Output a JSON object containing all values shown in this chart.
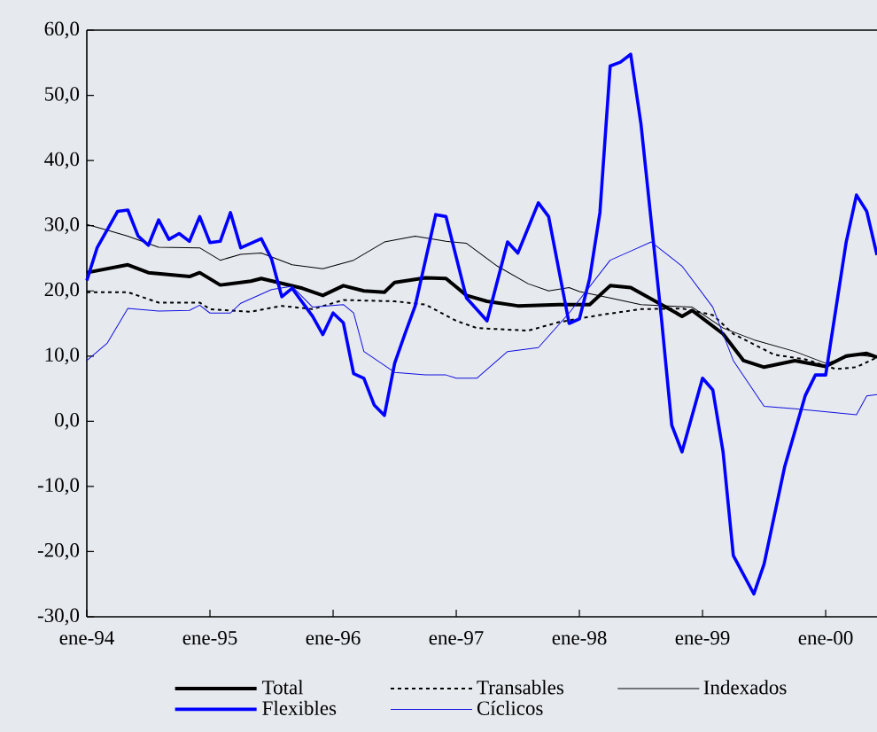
{
  "chart_data": {
    "type": "line",
    "xlim": [
      "1994-01",
      "2000-06"
    ],
    "xticks": [
      {
        "value": "1994-01",
        "label": "ene-94"
      },
      {
        "value": "1995-01",
        "label": "ene-95"
      },
      {
        "value": "1996-01",
        "label": "ene-96"
      },
      {
        "value": "1997-01",
        "label": "ene-97"
      },
      {
        "value": "1998-01",
        "label": "ene-98"
      },
      {
        "value": "1999-01",
        "label": "ene-99"
      },
      {
        "value": "2000-01",
        "label": "ene-00"
      }
    ],
    "ylim": [
      -30,
      60
    ],
    "yticks": [
      {
        "value": -30,
        "label": "-30,0"
      },
      {
        "value": -20,
        "label": "-20,0"
      },
      {
        "value": -10,
        "label": "-10,0"
      },
      {
        "value": 0,
        "label": "0,0"
      },
      {
        "value": 10,
        "label": "10,0"
      },
      {
        "value": 20,
        "label": "20,0"
      },
      {
        "value": 30,
        "label": "30,0"
      },
      {
        "value": 40,
        "label": "40,0"
      },
      {
        "value": 50,
        "label": "50,0"
      },
      {
        "value": 60,
        "label": "60,0"
      }
    ],
    "legend": "bottom",
    "marker": "none",
    "series": [
      {
        "name": "Total",
        "color": "#000000",
        "line_style": "solid",
        "x": [
          "1994-01",
          "1994-05",
          "1994-07",
          "1994-11",
          "1994-12",
          "1995-02",
          "1995-05",
          "1995-06",
          "1995-10",
          "1995-12",
          "1996-02",
          "1996-04",
          "1996-06",
          "1996-07",
          "1996-10",
          "1996-12",
          "1997-02",
          "1997-04",
          "1997-07",
          "1997-11",
          "1998-02",
          "1998-04",
          "1998-06",
          "1998-09",
          "1998-11",
          "1998-12",
          "1999-03",
          "1999-05",
          "1999-07",
          "1999-10",
          "2000-01",
          "2000-03",
          "2000-05",
          "2000-06"
        ],
        "values": [
          22.8,
          24.0,
          22.8,
          22.2,
          22.8,
          20.9,
          21.5,
          21.9,
          20.4,
          19.3,
          20.8,
          20.0,
          19.8,
          21.3,
          22.0,
          21.9,
          19.3,
          18.4,
          17.7,
          17.9,
          17.9,
          20.8,
          20.5,
          17.9,
          16.1,
          17.0,
          13.4,
          9.3,
          8.3,
          9.3,
          8.4,
          10.0,
          10.4,
          9.8
        ]
      },
      {
        "name": "Transables",
        "color": "#000000",
        "line_style": "dashed",
        "x": [
          "1994-01",
          "1994-05",
          "1994-08",
          "1994-12",
          "1995-01",
          "1995-05",
          "1995-08",
          "1995-11",
          "1996-02",
          "1996-07",
          "1996-10",
          "1997-01",
          "1997-03",
          "1997-08",
          "1997-11",
          "1998-03",
          "1998-07",
          "1998-11",
          "1999-02",
          "1999-04",
          "1999-08",
          "1999-11",
          "2000-02",
          "2000-04",
          "2000-06"
        ],
        "values": [
          19.8,
          19.8,
          18.2,
          18.2,
          17.2,
          16.8,
          17.7,
          17.2,
          18.6,
          18.4,
          17.9,
          15.4,
          14.3,
          13.9,
          15.2,
          16.3,
          17.2,
          17.3,
          16.3,
          13.4,
          10.2,
          9.5,
          8.0,
          8.3,
          9.8
        ]
      },
      {
        "name": "Indexados",
        "color": "#000000",
        "line_style": "solid",
        "x": [
          "1994-01",
          "1994-03",
          "1994-05",
          "1994-08",
          "1994-12",
          "1995-02",
          "1995-04",
          "1995-06",
          "1995-09",
          "1995-12",
          "1996-03",
          "1996-06",
          "1996-09",
          "1996-12",
          "1997-02",
          "1997-05",
          "1997-08",
          "1997-10",
          "1997-12",
          "1998-01",
          "1998-04",
          "1998-07",
          "1998-12",
          "1999-03",
          "1999-06",
          "1999-10",
          "2000-01",
          "2000-04",
          "2000-06"
        ],
        "values": [
          30.2,
          29.3,
          28.4,
          26.7,
          26.6,
          24.7,
          25.6,
          25.8,
          24.0,
          23.4,
          24.7,
          27.5,
          28.4,
          27.6,
          27.3,
          23.8,
          21.1,
          20.0,
          20.5,
          19.9,
          18.9,
          17.9,
          17.5,
          14.3,
          12.5,
          10.7,
          8.9,
          10.2,
          9.8
        ]
      },
      {
        "name": "Flexibles",
        "color": "#0000ff",
        "line_style": "solid",
        "x": [
          "1994-01",
          "1994-02",
          "1994-04",
          "1994-05",
          "1994-06",
          "1994-07",
          "1994-08",
          "1994-09",
          "1994-10",
          "1994-11",
          "1994-12",
          "1995-01",
          "1995-02",
          "1995-03",
          "1995-04",
          "1995-06",
          "1995-07",
          "1995-08",
          "1995-09",
          "1995-11",
          "1995-12",
          "1996-01",
          "1996-02",
          "1996-03",
          "1996-04",
          "1996-05",
          "1996-06",
          "1996-07",
          "1996-08",
          "1996-09",
          "1996-11",
          "1996-12",
          "1997-02",
          "1997-04",
          "1997-06",
          "1997-07",
          "1997-09",
          "1997-10",
          "1997-12",
          "1998-01",
          "1998-02",
          "1998-03",
          "1998-04",
          "1998-05",
          "1998-06",
          "1998-07",
          "1998-09",
          "1998-10",
          "1998-11",
          "1999-01",
          "1999-02",
          "1999-03",
          "1999-04",
          "1999-06",
          "1999-07",
          "1999-09",
          "1999-11",
          "1999-12",
          "2000-01",
          "2000-03",
          "2000-04",
          "2000-05",
          "2000-06"
        ],
        "values": [
          21.6,
          26.6,
          32.2,
          32.4,
          28.4,
          27.0,
          30.9,
          27.9,
          28.8,
          27.6,
          31.4,
          27.4,
          27.6,
          32.0,
          26.6,
          28.0,
          24.9,
          19.1,
          20.4,
          16.1,
          13.3,
          16.6,
          15.1,
          7.3,
          6.6,
          2.5,
          0.9,
          8.9,
          13.4,
          17.7,
          31.7,
          31.4,
          18.9,
          15.4,
          27.5,
          25.8,
          33.5,
          31.4,
          15.0,
          15.7,
          21.9,
          32.0,
          54.5,
          55.1,
          56.3,
          45.6,
          15.7,
          -0.6,
          -4.7,
          6.6,
          4.8,
          -4.7,
          -20.6,
          -26.5,
          -21.9,
          -7.0,
          3.9,
          7.1,
          7.1,
          27.5,
          34.7,
          32.2,
          25.5
        ]
      },
      {
        "name": "Cíclicos",
        "color": "#1010e0",
        "line_style": "solid",
        "x": [
          "1994-01",
          "1994-03",
          "1994-05",
          "1994-08",
          "1994-11",
          "1994-12",
          "1995-01",
          "1995-03",
          "1995-04",
          "1995-07",
          "1995-09",
          "1995-11",
          "1996-02",
          "1996-03",
          "1996-04",
          "1996-07",
          "1996-10",
          "1996-12",
          "1997-01",
          "1997-03",
          "1997-06",
          "1997-09",
          "1997-12",
          "1998-04",
          "1998-06",
          "1998-08",
          "1998-11",
          "1999-02",
          "1999-04",
          "1999-07",
          "1999-10",
          "2000-04",
          "2000-05",
          "2000-06"
        ],
        "values": [
          9.3,
          12.0,
          17.3,
          16.9,
          17.0,
          17.8,
          16.6,
          16.6,
          18.1,
          20.2,
          20.7,
          17.5,
          17.9,
          16.6,
          10.7,
          7.5,
          7.1,
          7.1,
          6.6,
          6.6,
          10.7,
          11.3,
          16.6,
          24.7,
          26.1,
          27.5,
          23.8,
          17.5,
          9.3,
          2.3,
          1.9,
          1.0,
          3.9,
          4.1
        ]
      }
    ]
  }
}
